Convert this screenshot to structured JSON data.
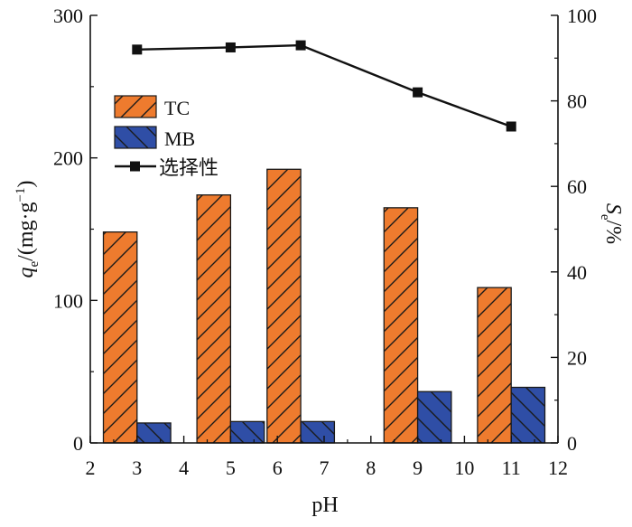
{
  "chart_data": {
    "type": "bar",
    "x": [
      3,
      5,
      6.5,
      9,
      11
    ],
    "bar_series": [
      {
        "name": "TC",
        "color": "#ee7b2e",
        "hatch": "forward",
        "values": [
          148,
          174,
          192,
          165,
          109
        ]
      },
      {
        "name": "MB",
        "color": "#2f4ea6",
        "hatch": "backward",
        "values": [
          14,
          15,
          15,
          36,
          39
        ]
      }
    ],
    "line_series": {
      "name": "选择性",
      "axis": "right",
      "x": [
        3,
        5,
        6.5,
        9,
        11
      ],
      "values": [
        92,
        92.5,
        93,
        82,
        74
      ]
    },
    "xlabel": "pH",
    "ylabel": "q_e/(mg·g⁻¹)",
    "ylabel_parts": {
      "main": "q",
      "sub": "e",
      "rest": "/(mg·g",
      "sup": "−1",
      "end": ")"
    },
    "y2label": "S_e/%",
    "y2label_parts": {
      "main": "S",
      "sub": "e",
      "rest": "/%"
    },
    "xlim": [
      2,
      12
    ],
    "ylim": [
      0,
      300
    ],
    "y2lim": [
      0,
      100
    ],
    "xticks": [
      2,
      3,
      4,
      5,
      6,
      7,
      8,
      9,
      10,
      11,
      12
    ],
    "yticks": [
      0,
      100,
      200,
      300
    ],
    "y2ticks": [
      0,
      20,
      40,
      60,
      80,
      100
    ],
    "legend": [
      "TC",
      "MB",
      "选择性"
    ],
    "legend_position": "upper-left"
  }
}
